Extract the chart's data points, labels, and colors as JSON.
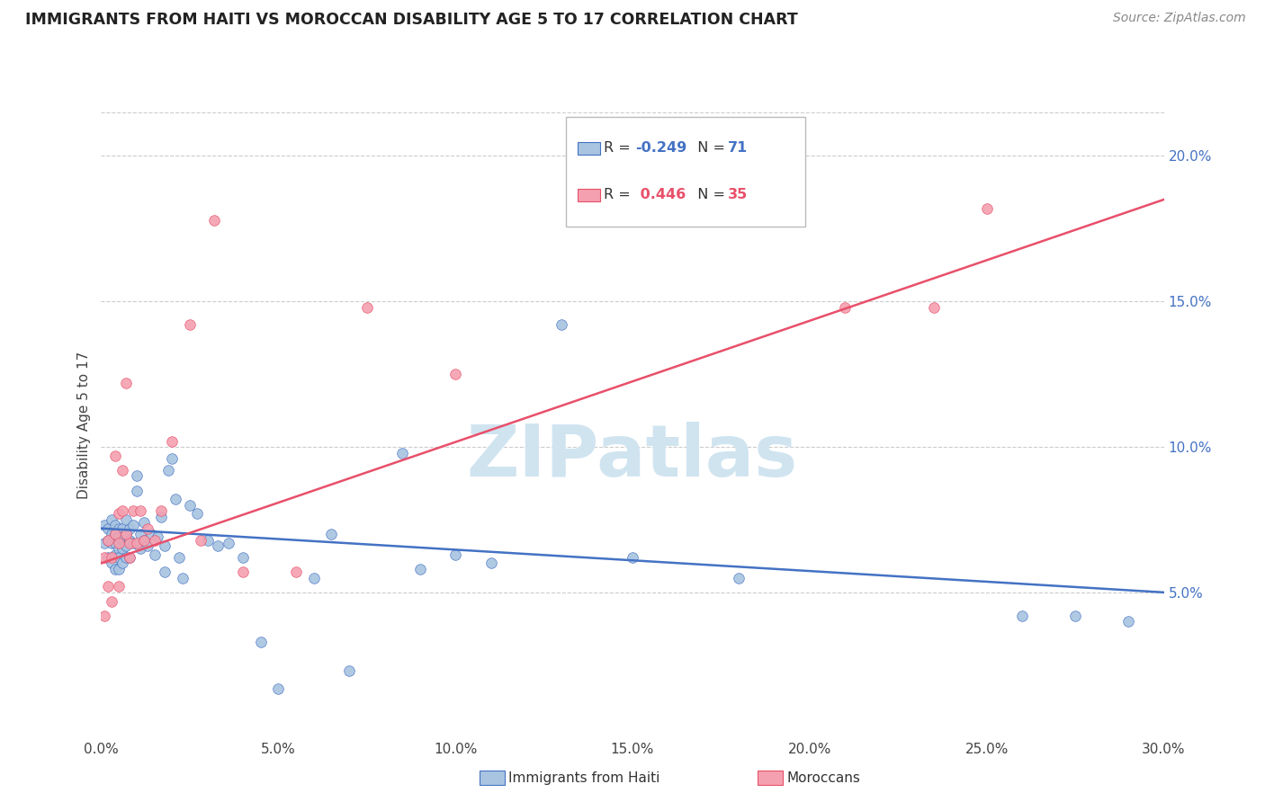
{
  "title": "IMMIGRANTS FROM HAITI VS MOROCCAN DISABILITY AGE 5 TO 17 CORRELATION CHART",
  "source": "Source: ZipAtlas.com",
  "ylabel": "Disability Age 5 to 17",
  "xlim": [
    0.0,
    0.3
  ],
  "ylim": [
    0.0,
    0.215
  ],
  "haiti_color": "#a8c4e0",
  "moroccan_color": "#f4a0b0",
  "haiti_line_color": "#4472c4",
  "moroccan_line_color": "#e8506a",
  "watermark_text": "ZIPatlas",
  "watermark_color": "#d0e4f0",
  "haiti_R": "-0.249",
  "haiti_N": "71",
  "moroccan_R": "0.446",
  "moroccan_N": "35",
  "haiti_scatter_x": [
    0.001,
    0.001,
    0.002,
    0.002,
    0.002,
    0.003,
    0.003,
    0.003,
    0.003,
    0.004,
    0.004,
    0.004,
    0.004,
    0.004,
    0.005,
    0.005,
    0.005,
    0.005,
    0.005,
    0.006,
    0.006,
    0.006,
    0.006,
    0.007,
    0.007,
    0.007,
    0.007,
    0.008,
    0.008,
    0.008,
    0.009,
    0.009,
    0.01,
    0.01,
    0.011,
    0.011,
    0.012,
    0.012,
    0.013,
    0.014,
    0.015,
    0.016,
    0.017,
    0.018,
    0.018,
    0.019,
    0.02,
    0.021,
    0.022,
    0.023,
    0.025,
    0.027,
    0.03,
    0.033,
    0.036,
    0.04,
    0.045,
    0.05,
    0.06,
    0.065,
    0.07,
    0.085,
    0.09,
    0.1,
    0.11,
    0.13,
    0.15,
    0.18,
    0.26,
    0.275,
    0.29
  ],
  "haiti_scatter_y": [
    0.073,
    0.067,
    0.072,
    0.068,
    0.062,
    0.075,
    0.07,
    0.067,
    0.06,
    0.073,
    0.07,
    0.067,
    0.063,
    0.058,
    0.072,
    0.069,
    0.065,
    0.062,
    0.058,
    0.072,
    0.069,
    0.065,
    0.06,
    0.075,
    0.07,
    0.066,
    0.062,
    0.072,
    0.068,
    0.062,
    0.073,
    0.067,
    0.09,
    0.085,
    0.07,
    0.065,
    0.074,
    0.068,
    0.066,
    0.07,
    0.063,
    0.069,
    0.076,
    0.066,
    0.057,
    0.092,
    0.096,
    0.082,
    0.062,
    0.055,
    0.08,
    0.077,
    0.068,
    0.066,
    0.067,
    0.062,
    0.033,
    0.017,
    0.055,
    0.07,
    0.023,
    0.098,
    0.058,
    0.063,
    0.06,
    0.142,
    0.062,
    0.055,
    0.042,
    0.042,
    0.04
  ],
  "moroccan_scatter_x": [
    0.001,
    0.001,
    0.002,
    0.002,
    0.003,
    0.003,
    0.004,
    0.004,
    0.005,
    0.005,
    0.005,
    0.006,
    0.006,
    0.007,
    0.007,
    0.008,
    0.008,
    0.009,
    0.01,
    0.011,
    0.012,
    0.013,
    0.015,
    0.017,
    0.02,
    0.025,
    0.028,
    0.032,
    0.04,
    0.055,
    0.075,
    0.1,
    0.21,
    0.235,
    0.25
  ],
  "moroccan_scatter_y": [
    0.062,
    0.042,
    0.068,
    0.052,
    0.062,
    0.047,
    0.097,
    0.07,
    0.077,
    0.067,
    0.052,
    0.092,
    0.078,
    0.122,
    0.07,
    0.067,
    0.062,
    0.078,
    0.067,
    0.078,
    0.068,
    0.072,
    0.068,
    0.078,
    0.102,
    0.142,
    0.068,
    0.178,
    0.057,
    0.057,
    0.148,
    0.125,
    0.148,
    0.148,
    0.182
  ]
}
